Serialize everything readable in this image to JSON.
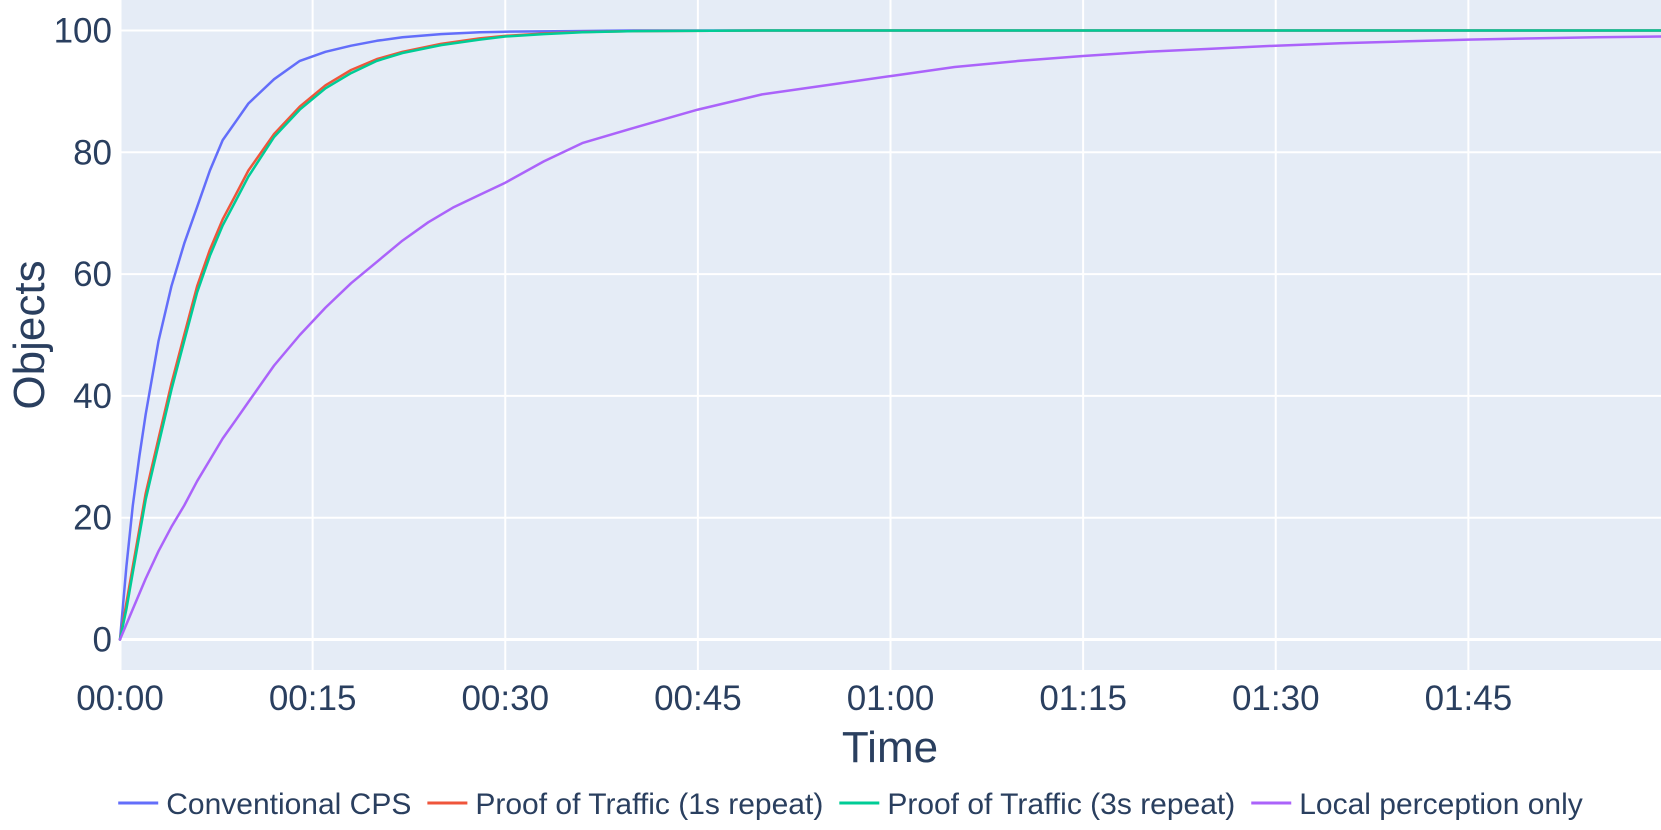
{
  "chart_data": {
    "type": "line",
    "xlabel": "Time",
    "ylabel": "Objects",
    "x_unit": "seconds",
    "xlim": [
      0,
      120
    ],
    "ylim": [
      -5,
      105
    ],
    "x_ticks": [
      {
        "value": 0,
        "label": "00:00"
      },
      {
        "value": 15,
        "label": "00:15"
      },
      {
        "value": 30,
        "label": "00:30"
      },
      {
        "value": 45,
        "label": "00:45"
      },
      {
        "value": 60,
        "label": "01:00"
      },
      {
        "value": 75,
        "label": "01:15"
      },
      {
        "value": 90,
        "label": "01:30"
      },
      {
        "value": 105,
        "label": "01:45"
      }
    ],
    "y_ticks": [
      {
        "value": 0,
        "label": "0"
      },
      {
        "value": 20,
        "label": "20"
      },
      {
        "value": 40,
        "label": "40"
      },
      {
        "value": 60,
        "label": "60"
      },
      {
        "value": 80,
        "label": "80"
      },
      {
        "value": 100,
        "label": "100"
      }
    ],
    "grid": true,
    "legend_position": "bottom",
    "background": "#e5ecf6",
    "series": [
      {
        "name": "Conventional CPS",
        "color": "#636efa",
        "x": [
          0,
          0.5,
          1,
          1.5,
          2,
          3,
          4,
          5,
          6,
          7,
          8,
          9,
          10,
          12,
          14,
          16,
          18,
          20,
          22,
          25,
          28,
          30,
          35,
          40,
          50,
          60,
          80,
          100,
          120
        ],
        "y": [
          0,
          12,
          22,
          30,
          37,
          49,
          58,
          65,
          71,
          77,
          82,
          85,
          88,
          92,
          95,
          96.5,
          97.5,
          98.3,
          98.9,
          99.4,
          99.7,
          99.8,
          99.9,
          100,
          100,
          100,
          100,
          100,
          100
        ]
      },
      {
        "name": "Proof of Traffic (1s repeat)",
        "color": "#ef553b",
        "x": [
          0,
          0.5,
          1,
          2,
          3,
          4,
          5,
          6,
          7,
          8,
          9,
          10,
          12,
          14,
          16,
          18,
          20,
          22,
          25,
          28,
          30,
          33,
          36,
          40,
          50,
          60,
          80,
          100,
          120
        ],
        "y": [
          0,
          6,
          12,
          24,
          33,
          42,
          50,
          58,
          64,
          69,
          73,
          77,
          83,
          87.5,
          91,
          93.5,
          95.3,
          96.5,
          97.8,
          98.7,
          99.1,
          99.5,
          99.75,
          99.9,
          100,
          100,
          100,
          100,
          100
        ]
      },
      {
        "name": "Proof of Traffic (3s repeat)",
        "color": "#00cc96",
        "x": [
          0,
          0.5,
          1,
          2,
          3,
          4,
          5,
          6,
          7,
          8,
          9,
          10,
          12,
          14,
          16,
          18,
          20,
          22,
          25,
          28,
          30,
          33,
          36,
          40,
          50,
          60,
          80,
          100,
          120
        ],
        "y": [
          0,
          5,
          11,
          23,
          32,
          41,
          49,
          57,
          63,
          68,
          72,
          76,
          82.5,
          87,
          90.5,
          93,
          95,
          96.3,
          97.6,
          98.5,
          99,
          99.4,
          99.7,
          99.9,
          100,
          100,
          100,
          100,
          100
        ]
      },
      {
        "name": "Local perception only",
        "color": "#ab63fa",
        "x": [
          0,
          1,
          2,
          3,
          4,
          5,
          6,
          7,
          8,
          9,
          10,
          12,
          14,
          16,
          18,
          20,
          22,
          24,
          26,
          28,
          30,
          33,
          36,
          40,
          45,
          50,
          55,
          60,
          65,
          70,
          75,
          80,
          85,
          90,
          95,
          100,
          105,
          110,
          115,
          120
        ],
        "y": [
          0,
          5,
          10,
          14.5,
          18.5,
          22,
          26,
          29.5,
          33,
          36,
          39,
          45,
          50,
          54.5,
          58.5,
          62,
          65.5,
          68.5,
          71,
          73,
          75,
          78.5,
          81.5,
          84,
          87,
          89.5,
          91,
          92.5,
          94,
          95,
          95.8,
          96.5,
          97,
          97.5,
          97.9,
          98.2,
          98.5,
          98.7,
          98.9,
          99
        ]
      }
    ]
  }
}
